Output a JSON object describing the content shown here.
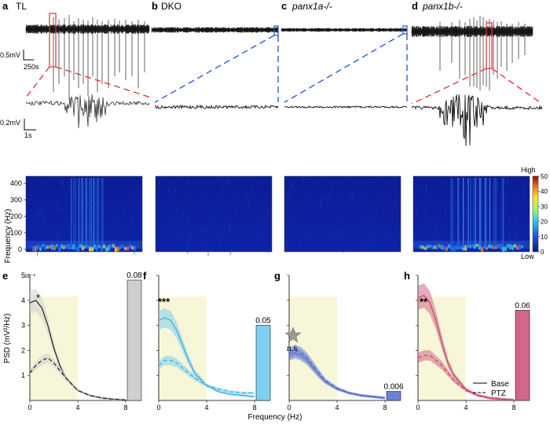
{
  "panel_labels": [
    "a",
    "b",
    "c",
    "d",
    "e",
    "f",
    "g",
    "h"
  ],
  "titles": [
    "TL",
    "DKO",
    "panx1a-/-",
    "panx1b-/-"
  ],
  "scale_bars": {
    "top_v": "0.5mV",
    "top_t": "250s",
    "mid_v": "0.2mV",
    "mid_t": "1s"
  },
  "colormap": {
    "title_high": "High",
    "title_low": "Low",
    "ticks": [
      "50",
      "40",
      "30",
      "20",
      "10",
      "0"
    ]
  },
  "spectrogram_ylabel": "Frequency (Hz)",
  "spectrogram_yticks": [
    "400",
    "300",
    "200",
    "100",
    "0"
  ],
  "psd_ylabel": "PSD (mV²/Hz)",
  "psd_yticks": [
    "5",
    "4",
    "3",
    "2",
    "1"
  ],
  "psd_exponent": "10⁻²",
  "psd_xticks": [
    "0",
    "4",
    "8"
  ],
  "psd_xlabel": "Frequency (Hz)",
  "legend": {
    "base": "Base",
    "ptz": "PTZ"
  },
  "significance": [
    "*",
    "***",
    "n.s",
    "**"
  ],
  "colors": {
    "TL": "#555555",
    "DKO": "#2aa7de",
    "panx1a": "#4a64c4",
    "panx1b": "#c43b63",
    "zoom_red": "#e03030",
    "zoom_blue": "#2050d8",
    "band": "#f7f6d8"
  },
  "chart_data": [
    {
      "type": "line",
      "title": "TL",
      "x": [
        0,
        0.5,
        1,
        1.5,
        2,
        2.5,
        3,
        4,
        5,
        6,
        7,
        8
      ],
      "series": [
        {
          "name": "Base",
          "values": [
            3.9,
            4.0,
            3.7,
            3.0,
            2.1,
            1.4,
            0.9,
            0.4,
            0.2,
            0.1,
            0.05,
            0.02
          ]
        },
        {
          "name": "PTZ",
          "values": [
            1.1,
            1.4,
            1.6,
            1.7,
            1.5,
            1.2,
            0.9,
            0.4,
            0.2,
            0.1,
            0.05,
            0.02
          ]
        }
      ],
      "bar": 0.08,
      "ylim": [
        0,
        5
      ]
    },
    {
      "type": "line",
      "title": "DKO",
      "x": [
        0,
        0.5,
        1,
        1.5,
        2,
        2.5,
        3,
        4,
        5,
        6,
        7,
        8
      ],
      "series": [
        {
          "name": "Base",
          "values": [
            3.2,
            3.3,
            3.2,
            2.8,
            2.2,
            1.6,
            1.1,
            0.6,
            0.35,
            0.25,
            0.2,
            0.15
          ]
        },
        {
          "name": "PTZ",
          "values": [
            1.4,
            1.6,
            1.6,
            1.5,
            1.3,
            1.1,
            0.9,
            0.6,
            0.45,
            0.35,
            0.3,
            0.3
          ]
        }
      ],
      "bar": 0.05,
      "ylim": [
        0,
        5
      ]
    },
    {
      "type": "line",
      "title": "panx1a-/-",
      "x": [
        0,
        0.5,
        1,
        1.5,
        2,
        2.5,
        3,
        4,
        5,
        6,
        7,
        8
      ],
      "series": [
        {
          "name": "Base",
          "values": [
            1.8,
            1.9,
            1.8,
            1.6,
            1.3,
            1.0,
            0.75,
            0.45,
            0.3,
            0.2,
            0.15,
            0.1
          ]
        },
        {
          "name": "PTZ",
          "values": [
            1.9,
            2.0,
            1.9,
            1.7,
            1.4,
            1.1,
            0.8,
            0.5,
            0.3,
            0.2,
            0.15,
            0.1
          ]
        }
      ],
      "bar": 0.006,
      "ylim": [
        0,
        5
      ]
    },
    {
      "type": "line",
      "title": "panx1b-/-",
      "x": [
        0,
        0.5,
        1,
        1.5,
        2,
        2.5,
        3,
        4,
        5,
        6,
        7,
        8
      ],
      "series": [
        {
          "name": "Base",
          "values": [
            4.1,
            4.2,
            3.9,
            3.2,
            2.3,
            1.5,
            1.0,
            0.45,
            0.2,
            0.1,
            0.05,
            0.02
          ]
        },
        {
          "name": "PTZ",
          "values": [
            1.7,
            1.8,
            1.8,
            1.6,
            1.4,
            1.1,
            0.8,
            0.4,
            0.2,
            0.1,
            0.05,
            0.02
          ]
        }
      ],
      "bar": 0.06,
      "ylim": [
        0,
        5
      ]
    }
  ]
}
